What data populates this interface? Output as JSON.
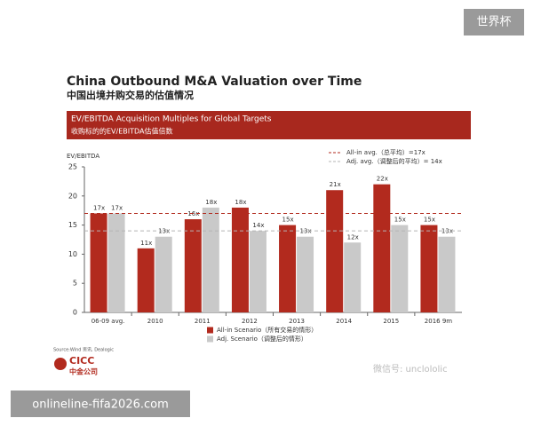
{
  "badge": "世界杯",
  "site": "onlineline-fifa2026.com",
  "wechat": "微信号: unclololic",
  "source": "Source:Wind 资讯, Dealogic",
  "logo": {
    "en": "CICC",
    "cn": "中金公司"
  },
  "chart_data": {
    "type": "bar",
    "title": "China Outbound M&A Valuation over Time",
    "subtitle": "中国出境并购交易的估值情况",
    "header_title": "EV/EBITDA Acquisition Multiples for Global Targets",
    "header_subtitle": "收购标的的EV/EBITDA估值倍数",
    "y_label": "EV/EBITDA",
    "categories": [
      "06-09 avg.",
      "2010",
      "2011",
      "2012",
      "2013",
      "2014",
      "2015",
      "2016 9m"
    ],
    "series": [
      {
        "name": "All-in Scenario（所有交易的情形）",
        "color": "#b22a1e",
        "values": [
          17,
          11,
          16,
          18,
          15,
          21,
          22,
          15
        ],
        "value_labels": [
          "17x",
          "11x",
          "16x",
          "18x",
          "15x",
          "21x",
          "22x",
          "15x"
        ]
      },
      {
        "name": "Adj. Scenario（调整后的情形）",
        "color": "#c9c9c9",
        "values": [
          17,
          13,
          18,
          14,
          13,
          12,
          15,
          13
        ],
        "value_labels": [
          "17x",
          "13x",
          "18x",
          "14x",
          "13x",
          "12x",
          "15x",
          "13x"
        ]
      }
    ],
    "reference_lines": [
      {
        "name": "All-in avg.（总平均）=17x",
        "value": 17,
        "color": "#b22a1e"
      },
      {
        "name": "Adj. avg.（调整后的平均）= 14x",
        "value": 14,
        "color": "#b5b5b5"
      }
    ],
    "ylim": [
      0,
      25
    ],
    "yticks": [
      0,
      5,
      10,
      15,
      20,
      25
    ],
    "grid": false
  }
}
